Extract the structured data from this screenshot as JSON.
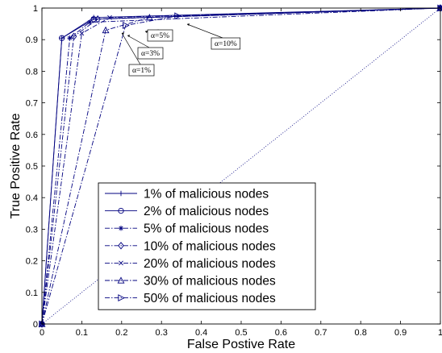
{
  "chart_data": {
    "type": "line",
    "xlabel": "False Postive Rate",
    "ylabel": "True Positive Rate",
    "xlim": [
      0,
      1
    ],
    "ylim": [
      0,
      1
    ],
    "xticks": [
      "0",
      "0.1",
      "0.2",
      "0.3",
      "0.4",
      "0.5",
      "0.6",
      "0.7",
      "0.8",
      "0.9",
      "1"
    ],
    "yticks": [
      "0",
      "0.1",
      "0.2",
      "0.3",
      "0.4",
      "0.5",
      "0.6",
      "0.7",
      "0.8",
      "0.9",
      "1"
    ],
    "grid": false,
    "legend_position": "bottom-center",
    "series": [
      {
        "name": "1% of malicious nodes",
        "marker": "plus",
        "dash": "solid",
        "x": [
          0,
          0.05,
          0.13,
          1
        ],
        "y": [
          0,
          0.905,
          0.97,
          1
        ]
      },
      {
        "name": "2% of malicious nodes",
        "marker": "circle",
        "dash": "solid",
        "x": [
          0,
          0.05,
          0.13,
          1
        ],
        "y": [
          0,
          0.905,
          0.965,
          1
        ]
      },
      {
        "name": "5% of malicious nodes",
        "marker": "star",
        "dash": "dashdot",
        "x": [
          0,
          0.07,
          0.12,
          1
        ],
        "y": [
          0,
          0.905,
          0.955,
          1
        ]
      },
      {
        "name": "10% of malicious nodes",
        "marker": "diamond",
        "dash": "dashdot",
        "x": [
          0,
          0.08,
          0.14,
          1
        ],
        "y": [
          0,
          0.91,
          0.965,
          1
        ]
      },
      {
        "name": "20% of malicious nodes",
        "marker": "x",
        "dash": "dashdot",
        "x": [
          0,
          0.1,
          0.17,
          1
        ],
        "y": [
          0,
          0.92,
          0.97,
          1
        ]
      },
      {
        "name": "30% of malicious nodes",
        "marker": "triangle-up",
        "dash": "dashdot",
        "x": [
          0,
          0.16,
          0.27,
          1
        ],
        "y": [
          0,
          0.93,
          0.97,
          1
        ]
      },
      {
        "name": "50% of malicious nodes",
        "marker": "triangle-right",
        "dash": "dashdot",
        "x": [
          0,
          0.21,
          0.34,
          1
        ],
        "y": [
          0,
          0.945,
          0.975,
          1
        ]
      }
    ],
    "reference_line": {
      "x": [
        0,
        1
      ],
      "y": [
        0,
        1
      ],
      "style": "dotted"
    },
    "annotations": [
      {
        "text": "α=1%",
        "x": 0.2,
        "y": 0.945
      },
      {
        "text": "α=3%",
        "x": 0.21,
        "y": 0.94
      },
      {
        "text": "α=5%",
        "x": 0.26,
        "y": 0.965
      },
      {
        "text": "α=10%",
        "x": 0.37,
        "y": 0.975
      }
    ],
    "colors": {
      "series": "#00007f",
      "reference": "#00007f",
      "axis": "#000000"
    }
  }
}
